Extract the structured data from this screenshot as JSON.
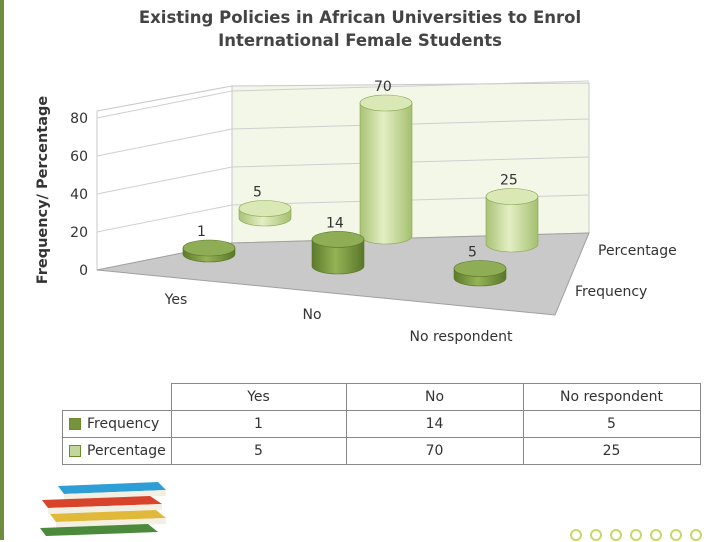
{
  "chart_data": {
    "type": "bar",
    "title": "Existing Policies in African Universities to Enrol International Female Students",
    "ylabel": "Frequency/ Percentage",
    "categories": [
      "Yes",
      "No",
      "No respondent"
    ],
    "series": [
      {
        "name": "Frequency",
        "values": [
          1,
          14,
          5
        ],
        "color": "#76923c"
      },
      {
        "name": "Percentage",
        "values": [
          5,
          70,
          25
        ],
        "color": "#c3d69b"
      }
    ],
    "yticks": [
      "0",
      "20",
      "40",
      "60",
      "80"
    ],
    "ylim": [
      0,
      80
    ],
    "grid": true,
    "style": "3d-cylinder",
    "table": {
      "headers": [
        "Yes",
        "No",
        "No respondent"
      ],
      "rows": [
        {
          "label": "Frequency",
          "cells": [
            "1",
            "14",
            "5"
          ]
        },
        {
          "label": "Percentage",
          "cells": [
            "5",
            "70",
            "25"
          ]
        }
      ]
    }
  }
}
